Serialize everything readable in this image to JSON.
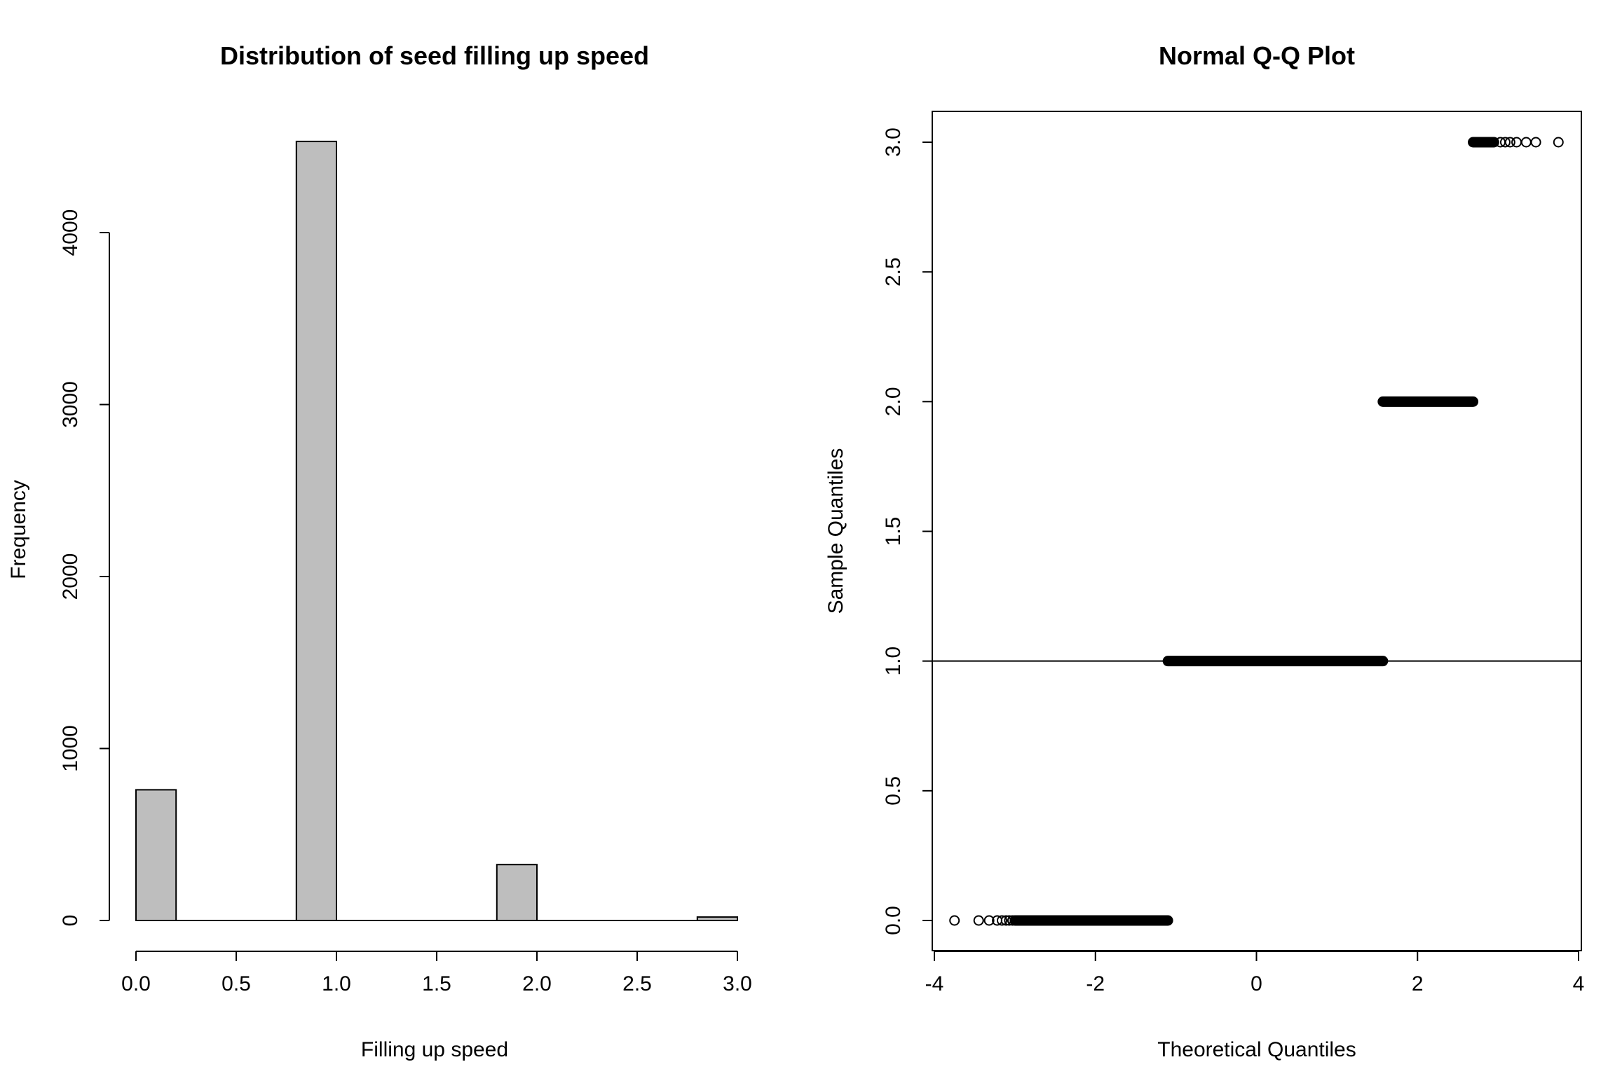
{
  "chart_data": [
    {
      "type": "bar",
      "title": "Distribution of seed filling up speed",
      "xlabel": "Filling up speed",
      "ylabel": "Frequency",
      "bins": [
        [
          0.0,
          0.2
        ],
        [
          0.8,
          1.0
        ],
        [
          1.8,
          2.0
        ],
        [
          2.8,
          3.0
        ]
      ],
      "values": [
        760,
        4530,
        325,
        20
      ],
      "xlim": [
        0.0,
        3.0
      ],
      "ylim": [
        0,
        4000
      ],
      "xticks": [
        0.0,
        0.5,
        1.0,
        1.5,
        2.0,
        2.5,
        3.0
      ],
      "xtick_labels": [
        "0.0",
        "0.5",
        "1.0",
        "1.5",
        "2.0",
        "2.5",
        "3.0"
      ],
      "yticks": [
        0,
        1000,
        2000,
        3000,
        4000
      ],
      "ytick_labels": [
        "0",
        "1000",
        "2000",
        "3000",
        "4000"
      ],
      "bar_color": "#bebebe",
      "grid": false
    },
    {
      "type": "scatter",
      "title": "Normal Q-Q Plot",
      "xlabel": "Theoretical Quantiles",
      "ylabel": "Sample Quantiles",
      "xlim": [
        -4,
        4
      ],
      "ylim": [
        0.0,
        3.0
      ],
      "xticks": [
        -4,
        -2,
        0,
        2,
        4
      ],
      "xtick_labels": [
        "-4",
        "-2",
        "0",
        "2",
        "4"
      ],
      "yticks": [
        0.0,
        0.5,
        1.0,
        1.5,
        2.0,
        2.5,
        3.0
      ],
      "ytick_labels": [
        "0.0",
        "0.5",
        "1.0",
        "1.5",
        "2.0",
        "2.5",
        "3.0"
      ],
      "groups": [
        {
          "y": 0,
          "x_from": -3.0,
          "x_to": -1.1,
          "outliers_x": [
            -3.75,
            -3.45,
            -3.32,
            -3.22,
            -3.16,
            -3.11,
            -3.07,
            -3.03
          ]
        },
        {
          "y": 1,
          "x_from": -1.1,
          "x_to": 1.57,
          "outliers_x": []
        },
        {
          "y": 2,
          "x_from": 1.57,
          "x_to": 2.69,
          "outliers_x": []
        },
        {
          "y": 3,
          "x_from": 2.69,
          "x_to": 2.95,
          "outliers_x": [
            3.03,
            3.09,
            3.15,
            3.23,
            3.35,
            3.47,
            3.75
          ]
        }
      ],
      "reference_line": {
        "slope": 0,
        "intercept": 1.0
      },
      "grid": false
    }
  ]
}
